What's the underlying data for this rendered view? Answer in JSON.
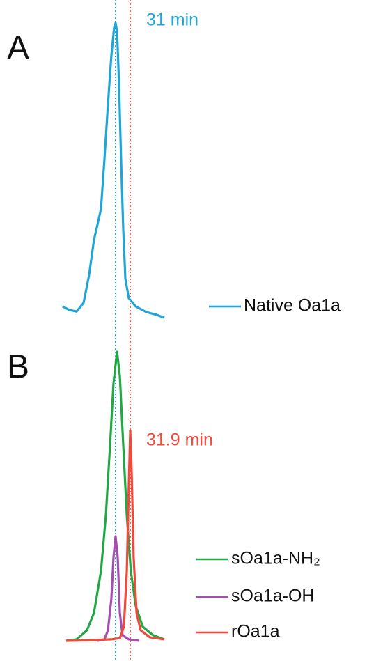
{
  "chart_data": [
    {
      "type": "line",
      "panel_label": "A",
      "annotation": "31 min",
      "annotation_color": "#1ea6d8",
      "xlim": [
        27.5,
        34
      ],
      "ylim": [
        0,
        100
      ],
      "vlines": [
        {
          "x": 31,
          "color": "#1ea6d8"
        },
        {
          "x": 31.9,
          "color": "#f04a3a"
        }
      ],
      "series": [
        {
          "name": "Native Oa1a",
          "color": "#1ea6d8",
          "x": [
            27.74,
            28.17,
            28.6,
            29.03,
            29.37,
            29.67,
            29.89,
            30.1,
            30.31,
            30.53,
            30.74,
            30.91,
            31.0,
            31.09,
            31.21,
            31.34,
            31.47,
            31.6,
            31.81,
            32.24,
            32.89,
            33.53,
            34.0
          ],
          "values": [
            4.7,
            3.5,
            3.0,
            5.9,
            15.2,
            27.0,
            32.3,
            37.5,
            53.9,
            72.6,
            89.0,
            98.4,
            100,
            97.2,
            79.6,
            53.9,
            30.4,
            14.1,
            7.5,
            4.7,
            2.8,
            1.9,
            0.9
          ]
        }
      ]
    },
    {
      "type": "line",
      "panel_label": "B",
      "annotation": "31.9 min",
      "annotation_color": "#f04a3a",
      "xlim": [
        27.5,
        34
      ],
      "ylim": [
        0,
        100
      ],
      "vlines": [
        {
          "x": 31,
          "color": "#1ea6d8"
        },
        {
          "x": 31.9,
          "color": "#f04a3a"
        }
      ],
      "series": [
        {
          "name": "sOa1a-NH₂",
          "color": "#22a745",
          "x": [
            27.96,
            28.6,
            29.24,
            29.67,
            30.1,
            30.4,
            30.66,
            30.87,
            31.09,
            31.26,
            31.47,
            31.69,
            31.94,
            32.24,
            32.67,
            33.31,
            34.0
          ],
          "values": [
            1.2,
            1.7,
            4.8,
            10.7,
            25,
            44,
            67.9,
            89.3,
            100,
            91.7,
            67.9,
            44,
            25,
            13.1,
            6,
            3.1,
            1.7
          ]
        },
        {
          "name": "sOa1a-OH",
          "color": "#a64db0",
          "x": [
            29.89,
            30.31,
            30.53,
            30.74,
            30.87,
            31.0,
            31.13,
            31.26,
            31.43,
            31.81,
            32.46
          ],
          "values": [
            1.2,
            1.7,
            4.8,
            15.5,
            29.8,
            36.9,
            29.8,
            10.7,
            3.1,
            1.7,
            1.2
          ]
        },
        {
          "name": "rOa1a",
          "color": "#f04a3a",
          "x": [
            27.96,
            29.46,
            30.74,
            31.26,
            31.51,
            31.69,
            31.81,
            31.9,
            31.99,
            32.11,
            32.29,
            32.54,
            33.1,
            34.0
          ],
          "values": [
            1.2,
            1.4,
            1.7,
            2.1,
            6,
            25,
            53.6,
            73.1,
            58.3,
            29.8,
            10.7,
            4.8,
            2.4,
            1.7
          ]
        }
      ]
    }
  ]
}
